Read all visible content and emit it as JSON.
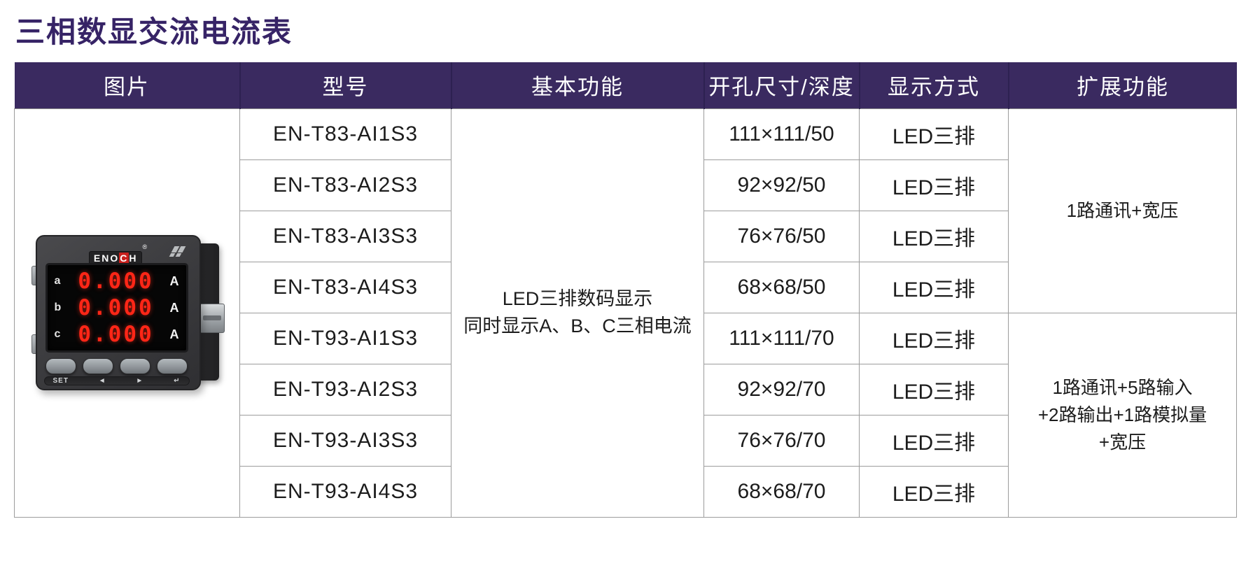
{
  "page": {
    "title": "三相数显交流电流表"
  },
  "colors": {
    "title_text": "#362366",
    "header_bg": "#3a2a60",
    "header_text": "#ffffff",
    "cell_border": "#9c9c9c",
    "body_text": "#1c1c1c",
    "digit_red": "#ff2617",
    "meter_body": "#3a3a3d"
  },
  "table": {
    "headers": [
      "图片",
      "型号",
      "基本功能",
      "开孔尺寸/深度",
      "显示方式",
      "扩展功能"
    ],
    "rows": [
      {
        "model": "EN-T83-AI1S3",
        "size": "111×111/50",
        "display": "LED三排"
      },
      {
        "model": "EN-T83-AI2S3",
        "size": "92×92/50",
        "display": "LED三排"
      },
      {
        "model": "EN-T83-AI3S3",
        "size": "76×76/50",
        "display": "LED三排"
      },
      {
        "model": "EN-T83-AI4S3",
        "size": "68×68/50",
        "display": "LED三排"
      },
      {
        "model": "EN-T93-AI1S3",
        "size": "111×111/70",
        "display": "LED三排"
      },
      {
        "model": "EN-T93-AI2S3",
        "size": "92×92/70",
        "display": "LED三排"
      },
      {
        "model": "EN-T93-AI3S3",
        "size": "76×76/70",
        "display": "LED三排"
      },
      {
        "model": "EN-T93-AI4S3",
        "size": "68×68/70",
        "display": "LED三排"
      }
    ],
    "basic_function": {
      "line1": "LED三排数码显示",
      "line2": "同时显示A、B、C三相电流"
    },
    "extended": {
      "group1": {
        "line1": "1路通讯+宽压"
      },
      "group2": {
        "line1": "1路通讯+5路输入",
        "line2": "+2路输出+1路模拟量",
        "line3": "+宽压"
      }
    }
  },
  "meter": {
    "brand_prefix": "ENO",
    "brand_c": "C",
    "brand_suffix": "H",
    "brand_reg": "®",
    "display_rows": [
      {
        "phase": "a",
        "value": "0.000",
        "unit": "A"
      },
      {
        "phase": "b",
        "value": "0.000",
        "unit": "A"
      },
      {
        "phase": "c",
        "value": "0.000",
        "unit": "A"
      }
    ],
    "strip": {
      "set": "SET",
      "left": "◄",
      "right": "►",
      "enter": "↵"
    }
  }
}
